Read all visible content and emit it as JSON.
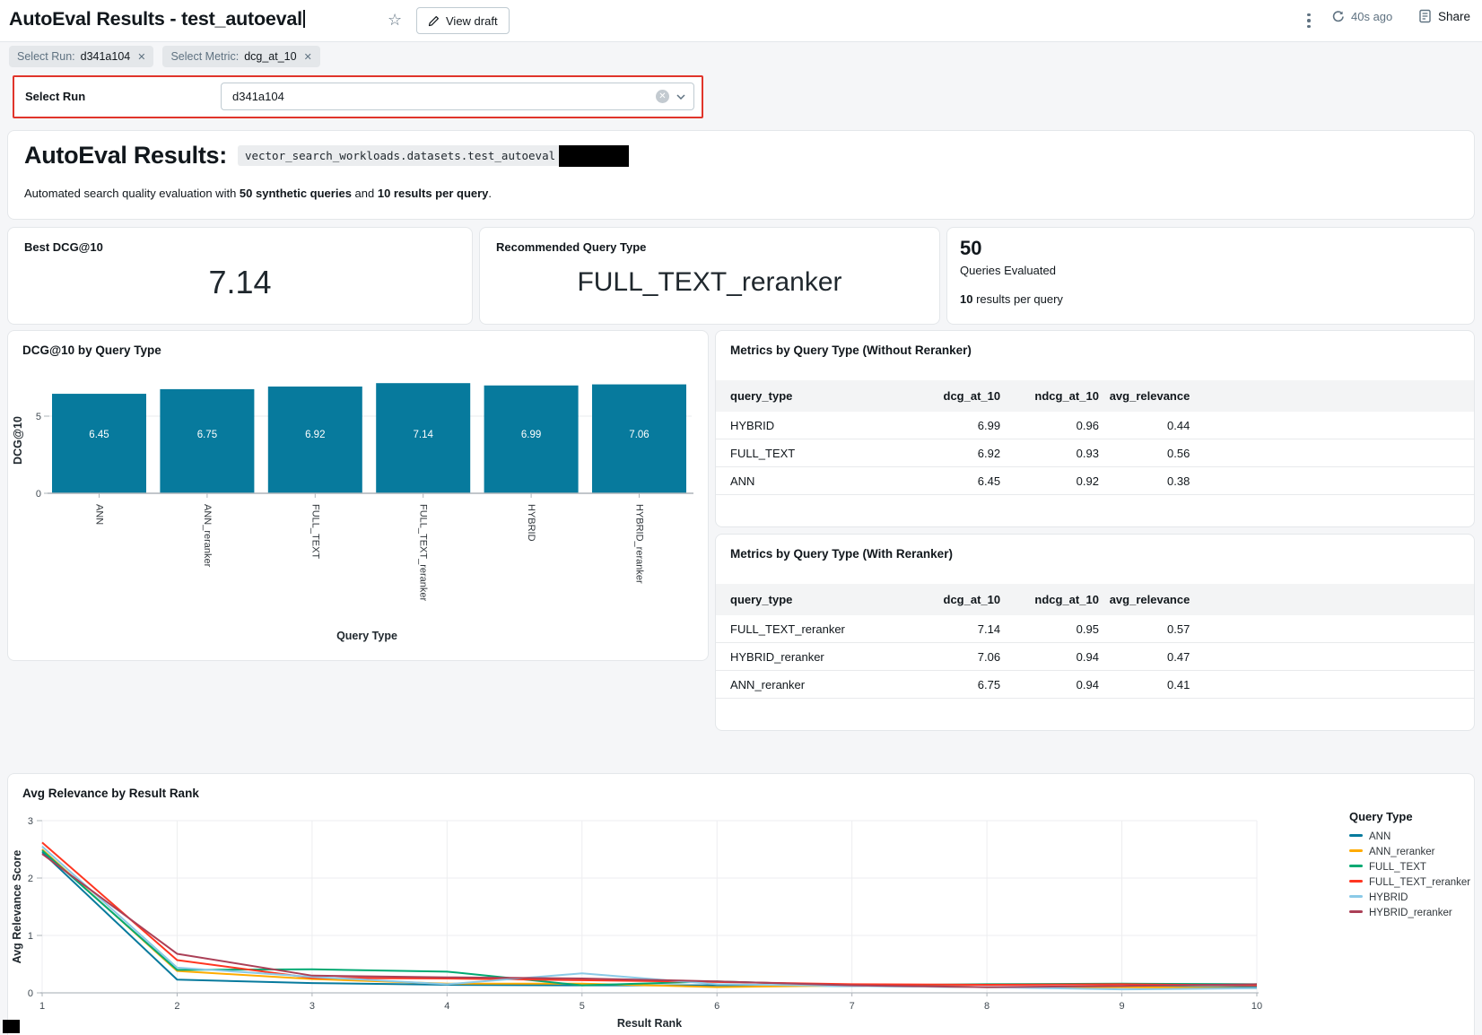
{
  "header": {
    "title": "AutoEval Results - test_autoeval",
    "view_draft_label": "View draft",
    "refresh_age": "40s ago",
    "share_label": "Share"
  },
  "filters": {
    "chips": [
      {
        "label": "Select Run:",
        "value": "d341a104"
      },
      {
        "label": "Select Metric:",
        "value": "dcg_at_10"
      }
    ],
    "select_run": {
      "label": "Select Run",
      "value": "d341a104"
    }
  },
  "overview": {
    "heading": "AutoEval Results:",
    "dataset_path": "vector_search_workloads.datasets.test_autoeval",
    "desc_parts": [
      "Automated search quality evaluation with ",
      "50 synthetic queries",
      " and ",
      "10 results per query",
      "."
    ]
  },
  "stat_cards": {
    "best_dcg": {
      "label": "Best DCG@10",
      "value": "7.14"
    },
    "recommended": {
      "label": "Recommended Query Type",
      "value": "FULL_TEXT_reranker"
    },
    "queries": {
      "count": "50",
      "count_label": "Queries Evaluated",
      "per_query_bold": "10",
      "per_query_rest": " results per query"
    }
  },
  "tables": [
    {
      "title": "Metrics by Query Type (Without Reranker)",
      "headers": [
        "query_type",
        "dcg_at_10",
        "ndcg_at_10",
        "avg_relevance"
      ],
      "rows": [
        [
          "HYBRID",
          "6.99",
          "0.96",
          "0.44"
        ],
        [
          "FULL_TEXT",
          "6.92",
          "0.93",
          "0.56"
        ],
        [
          "ANN",
          "6.45",
          "0.92",
          "0.38"
        ]
      ]
    },
    {
      "title": "Metrics by Query Type (With Reranker)",
      "headers": [
        "query_type",
        "dcg_at_10",
        "ndcg_at_10",
        "avg_relevance"
      ],
      "rows": [
        [
          "FULL_TEXT_reranker",
          "7.14",
          "0.95",
          "0.57"
        ],
        [
          "HYBRID_reranker",
          "7.06",
          "0.94",
          "0.47"
        ],
        [
          "ANN_reranker",
          "6.75",
          "0.94",
          "0.41"
        ]
      ]
    }
  ],
  "colors": {
    "highlight_red": "#e0352b",
    "bar": "#077a9d"
  },
  "chart_data": [
    {
      "type": "bar",
      "title": "DCG@10 by Query Type",
      "categories": [
        "ANN",
        "ANN_reranker",
        "FULL_TEXT",
        "FULL_TEXT_reranker",
        "HYBRID",
        "HYBRID_reranker"
      ],
      "values": [
        6.45,
        6.75,
        6.92,
        7.14,
        6.99,
        7.06
      ],
      "xlabel": "Query Type",
      "ylabel": "DCG@10",
      "ylim": [
        0,
        7.5
      ],
      "yticks": [
        0,
        5
      ],
      "bar_color": "#077a9d",
      "value_label_color": "#ffffff"
    },
    {
      "type": "line",
      "title": "Avg Relevance by Result Rank",
      "xlabel": "Result Rank",
      "ylabel": "Avg Relevance Score",
      "legend_title": "Query Type",
      "x": [
        1,
        2,
        3,
        4,
        5,
        6,
        7,
        8,
        9,
        10
      ],
      "ylim": [
        0,
        3
      ],
      "yticks": [
        0,
        1,
        2,
        3
      ],
      "series": [
        {
          "name": "ANN",
          "color": "#077a9d",
          "values": [
            2.45,
            0.23,
            0.17,
            0.14,
            0.13,
            0.13,
            0.12,
            0.1,
            0.1,
            0.1
          ]
        },
        {
          "name": "ANN_reranker",
          "color": "#ffab00",
          "values": [
            2.5,
            0.38,
            0.24,
            0.16,
            0.16,
            0.1,
            0.13,
            0.1,
            0.1,
            0.08
          ]
        },
        {
          "name": "FULL_TEXT",
          "color": "#00a972",
          "values": [
            2.48,
            0.4,
            0.41,
            0.37,
            0.13,
            0.2,
            0.13,
            0.15,
            0.16,
            0.15
          ]
        },
        {
          "name": "FULL_TEXT_reranker",
          "color": "#ff3621",
          "values": [
            2.62,
            0.57,
            0.26,
            0.25,
            0.22,
            0.19,
            0.15,
            0.14,
            0.15,
            0.13
          ]
        },
        {
          "name": "HYBRID",
          "color": "#8bcae7",
          "values": [
            2.55,
            0.44,
            0.28,
            0.15,
            0.34,
            0.15,
            0.12,
            0.1,
            0.06,
            0.08
          ]
        },
        {
          "name": "HYBRID_reranker",
          "color": "#ab4057",
          "values": [
            2.42,
            0.68,
            0.3,
            0.27,
            0.25,
            0.2,
            0.13,
            0.1,
            0.12,
            0.15
          ]
        }
      ]
    }
  ]
}
